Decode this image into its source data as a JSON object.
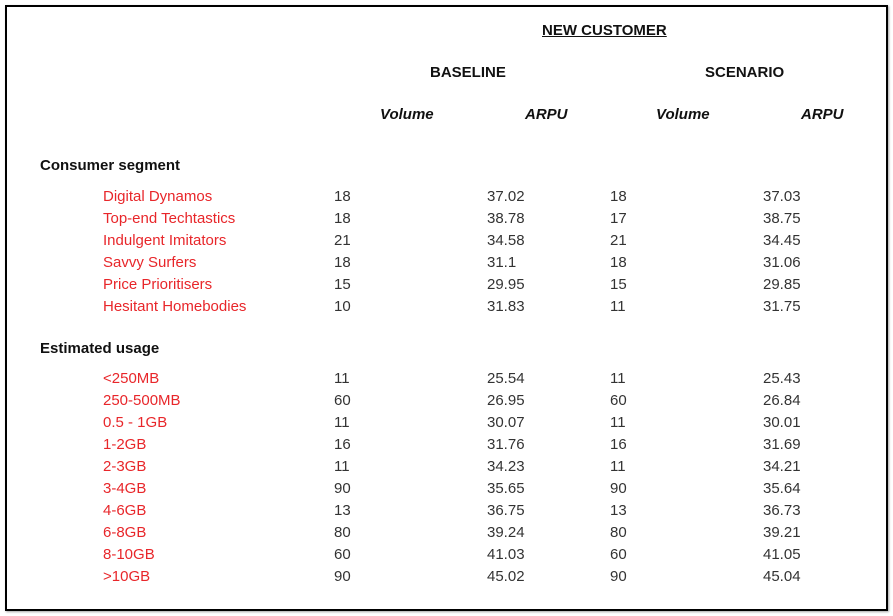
{
  "header": {
    "title": "NEW CUSTOMER",
    "baseline": "BASELINE",
    "scenario": "SCENARIO",
    "volume": "Volume",
    "arpu": "ARPU"
  },
  "sections": [
    {
      "title": "Consumer segment",
      "rows": [
        {
          "label": "Digital Dynamos",
          "base_volume": "18",
          "base_arpu": "37.02",
          "scen_volume": "18",
          "scen_arpu": "37.03"
        },
        {
          "label": "Top-end Techtastics",
          "base_volume": "18",
          "base_arpu": "38.78",
          "scen_volume": "17",
          "scen_arpu": "38.75"
        },
        {
          "label": "Indulgent Imitators",
          "base_volume": "21",
          "base_arpu": "34.58",
          "scen_volume": "21",
          "scen_arpu": "34.45"
        },
        {
          "label": "Savvy Surfers",
          "base_volume": "18",
          "base_arpu": "31.1",
          "scen_volume": "18",
          "scen_arpu": "31.06"
        },
        {
          "label": "Price Prioritisers",
          "base_volume": "15",
          "base_arpu": "29.95",
          "scen_volume": "15",
          "scen_arpu": "29.85"
        },
        {
          "label": "Hesitant Homebodies",
          "base_volume": "10",
          "base_arpu": "31.83",
          "scen_volume": "11",
          "scen_arpu": "31.75"
        }
      ]
    },
    {
      "title": "Estimated usage",
      "rows": [
        {
          "label": "<250MB",
          "base_volume": "11",
          "base_arpu": "25.54",
          "scen_volume": "11",
          "scen_arpu": "25.43"
        },
        {
          "label": "250-500MB",
          "base_volume": "60",
          "base_arpu": "26.95",
          "scen_volume": "60",
          "scen_arpu": "26.84"
        },
        {
          "label": "0.5 - 1GB",
          "base_volume": "11",
          "base_arpu": "30.07",
          "scen_volume": "11",
          "scen_arpu": "30.01"
        },
        {
          "label": "1-2GB",
          "base_volume": "16",
          "base_arpu": "31.76",
          "scen_volume": "16",
          "scen_arpu": "31.69"
        },
        {
          "label": "2-3GB",
          "base_volume": "11",
          "base_arpu": "34.23",
          "scen_volume": "11",
          "scen_arpu": "34.21"
        },
        {
          "label": "3-4GB",
          "base_volume": "90",
          "base_arpu": "35.65",
          "scen_volume": "90",
          "scen_arpu": "35.64"
        },
        {
          "label": "4-6GB",
          "base_volume": "13",
          "base_arpu": "36.75",
          "scen_volume": "13",
          "scen_arpu": "36.73"
        },
        {
          "label": "6-8GB",
          "base_volume": "80",
          "base_arpu": "39.24",
          "scen_volume": "80",
          "scen_arpu": "39.21"
        },
        {
          "label": "8-10GB",
          "base_volume": "60",
          "base_arpu": "41.03",
          "scen_volume": "60",
          "scen_arpu": "41.05"
        },
        {
          "label": ">10GB",
          "base_volume": "90",
          "base_arpu": "45.02",
          "scen_volume": "90",
          "scen_arpu": "45.04"
        }
      ]
    }
  ],
  "colors": {
    "label_red": "#e8262a"
  }
}
